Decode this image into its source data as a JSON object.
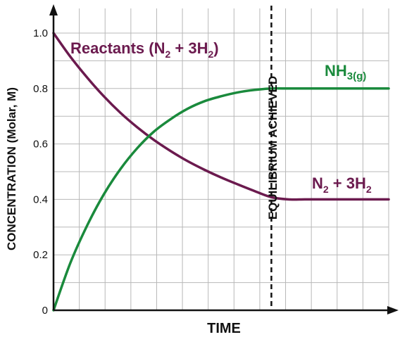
{
  "chart_data": {
    "type": "line",
    "title": "",
    "xlabel": "TIME",
    "ylabel": "CONCENTRATION (Molar, M)",
    "ylim": [
      0,
      1.0
    ],
    "xlim": [
      0,
      1
    ],
    "y_ticks": [
      "0",
      "0.2",
      "0.4",
      "0.6",
      "0.8",
      "1.0"
    ],
    "y_tick_values": [
      0,
      0.2,
      0.4,
      0.6,
      0.8,
      1.0
    ],
    "grid": true,
    "x_ticks_labeled": false,
    "equilibrium_x": 0.65,
    "equilibrium_label": "EQUILIBRIUM ACHIEVED",
    "series": [
      {
        "name": "Reactants",
        "color": "#6b1a4e",
        "x": [
          0,
          0.05,
          0.1,
          0.15,
          0.2,
          0.25,
          0.3,
          0.35,
          0.4,
          0.45,
          0.5,
          0.55,
          0.6,
          0.65,
          0.7,
          0.75,
          0.8,
          0.85,
          0.9,
          0.95,
          1.0
        ],
        "y": [
          1.0,
          0.915,
          0.84,
          0.772,
          0.712,
          0.66,
          0.614,
          0.574,
          0.538,
          0.507,
          0.479,
          0.454,
          0.43,
          0.408,
          0.4,
          0.4,
          0.4,
          0.4,
          0.4,
          0.4,
          0.4
        ]
      },
      {
        "name": "NH3(g)",
        "color": "#1a8a3c",
        "x": [
          0,
          0.05,
          0.1,
          0.15,
          0.2,
          0.25,
          0.3,
          0.35,
          0.4,
          0.45,
          0.5,
          0.55,
          0.6,
          0.65,
          0.7,
          0.75,
          0.8,
          0.85,
          0.9,
          0.95,
          1.0
        ],
        "y": [
          0.0,
          0.17,
          0.305,
          0.418,
          0.51,
          0.585,
          0.645,
          0.69,
          0.727,
          0.754,
          0.772,
          0.786,
          0.795,
          0.8,
          0.8,
          0.8,
          0.8,
          0.8,
          0.8,
          0.8,
          0.8
        ]
      }
    ],
    "annotations": {
      "reactants_label": {
        "main": "Reactants (N",
        "sub1": "2",
        "mid": " + 3H",
        "sub2": "2",
        "end": ")"
      },
      "nh3_label": {
        "main": "NH",
        "sub": "3(g)"
      },
      "products_end_label": {
        "main": "N",
        "sub1": "2",
        "mid": " + 3H",
        "sub2": "2"
      }
    }
  }
}
